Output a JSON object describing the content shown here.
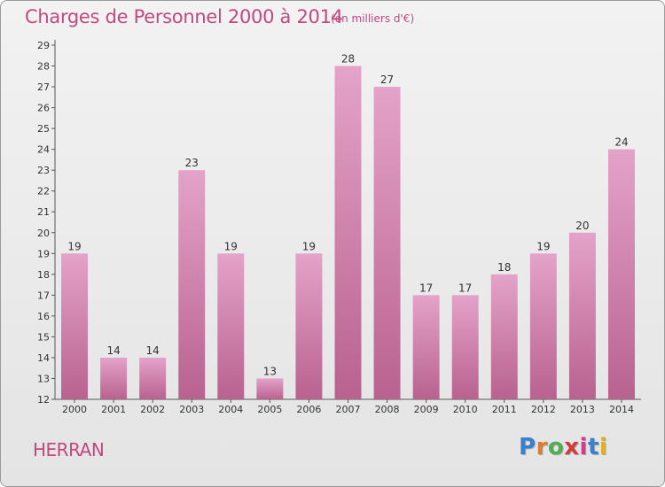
{
  "title": "Charges de Personnel 2000 à 2014",
  "unit_note": "(en milliers d'€)",
  "commune": "HERRAN",
  "logo": {
    "letters": [
      "P",
      "r",
      "o",
      "x",
      "i",
      "t",
      "i"
    ],
    "colors": [
      "#3a7fd0",
      "#e07a2e",
      "#4caf50",
      "#d23b3b",
      "#d23b8a",
      "#3a7fd0",
      "#e0b020"
    ]
  },
  "colors": {
    "accent": "#c04a7e",
    "bar_top": "#e4a3c9",
    "bar_bottom": "#b8628f"
  },
  "chart_data": {
    "type": "bar",
    "categories": [
      "2000",
      "2001",
      "2002",
      "2003",
      "2004",
      "2005",
      "2006",
      "2007",
      "2008",
      "2009",
      "2010",
      "2011",
      "2012",
      "2013",
      "2014"
    ],
    "values": [
      19,
      14,
      14,
      23,
      19,
      13,
      19,
      28,
      27,
      17,
      17,
      18,
      19,
      20,
      24
    ],
    "title": "Charges de Personnel 2000 à 2014",
    "xlabel": "",
    "ylabel": "",
    "ylim": [
      12,
      29
    ],
    "yticks": [
      12,
      13,
      14,
      15,
      16,
      17,
      18,
      19,
      20,
      21,
      22,
      23,
      24,
      25,
      26,
      27,
      28,
      29
    ],
    "grid": false,
    "legend": "none"
  }
}
